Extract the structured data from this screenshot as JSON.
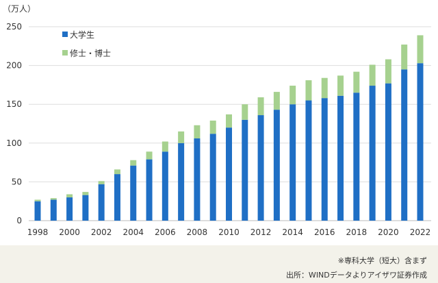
{
  "chart_data": {
    "type": "bar",
    "stacked": true,
    "unit_label": "（万人）",
    "categories": [
      "1998",
      "1999",
      "2000",
      "2001",
      "2002",
      "2003",
      "2004",
      "2005",
      "2006",
      "2007",
      "2008",
      "2009",
      "2010",
      "2011",
      "2012",
      "2013",
      "2014",
      "2015",
      "2016",
      "2017",
      "2018",
      "2019",
      "2020",
      "2021",
      "2022"
    ],
    "x_tick_labels": [
      "1998",
      "2000",
      "2002",
      "2004",
      "2006",
      "2008",
      "2010",
      "2012",
      "2014",
      "2016",
      "2018",
      "2020",
      "2022"
    ],
    "y_ticks": [
      0,
      50,
      100,
      150,
      200,
      250
    ],
    "ylim": [
      0,
      250
    ],
    "grid": true,
    "legend_position": "top-left",
    "series": [
      {
        "name": "大学生",
        "color": "#1f6fc5",
        "values": [
          25,
          27,
          30,
          33,
          47,
          60,
          71,
          79,
          89,
          100,
          106,
          112,
          120,
          130,
          136,
          143,
          150,
          155,
          158,
          161,
          165,
          174,
          177,
          195,
          203
        ]
      },
      {
        "name": "修士・博士",
        "color": "#a6d18f",
        "values": [
          2,
          2,
          4,
          4,
          4,
          6,
          7,
          10,
          13,
          15,
          17,
          17,
          17,
          20,
          23,
          23,
          24,
          26,
          26,
          26,
          27,
          27,
          31,
          32,
          36
        ]
      }
    ]
  },
  "notes": {
    "line1": "※専科大学（短大）含まず",
    "line2": "出所：WINDデータよりアイザワ証券作成"
  }
}
